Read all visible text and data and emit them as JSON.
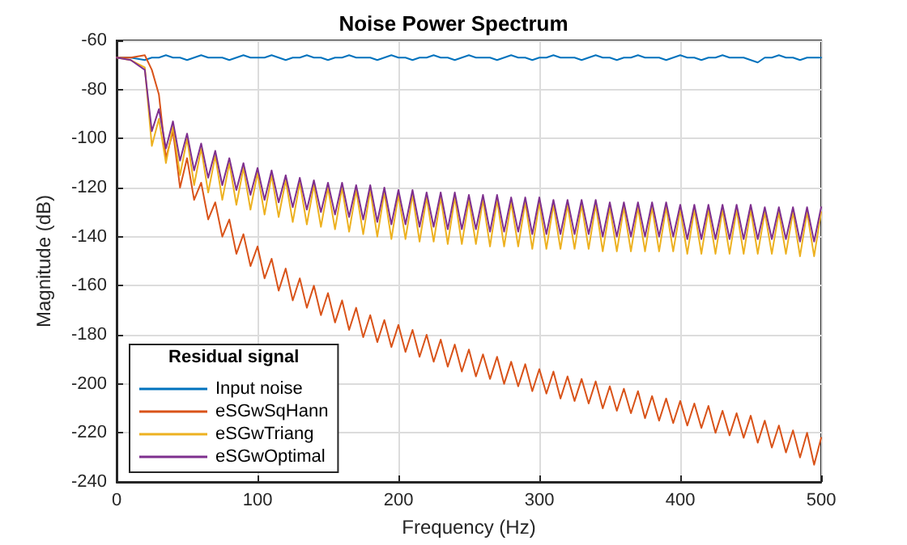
{
  "chart_data": {
    "type": "line",
    "title": "Noise Power Spectrum",
    "xlabel": "Frequency (Hz)",
    "ylabel": "Magnitude (dB)",
    "legend_title": "Residual signal",
    "x": [
      0,
      10,
      20,
      25,
      30,
      35,
      40,
      45,
      50,
      55,
      60,
      65,
      70,
      75,
      80,
      85,
      90,
      95,
      100,
      105,
      110,
      115,
      120,
      125,
      130,
      135,
      140,
      145,
      150,
      155,
      160,
      165,
      170,
      175,
      180,
      185,
      190,
      195,
      200,
      205,
      210,
      215,
      220,
      225,
      230,
      235,
      240,
      245,
      250,
      255,
      260,
      265,
      270,
      275,
      280,
      285,
      290,
      295,
      300,
      305,
      310,
      315,
      320,
      325,
      330,
      335,
      340,
      345,
      350,
      355,
      360,
      365,
      370,
      375,
      380,
      385,
      390,
      395,
      400,
      405,
      410,
      415,
      420,
      425,
      430,
      435,
      440,
      445,
      450,
      455,
      460,
      465,
      470,
      475,
      480,
      485,
      490,
      495,
      500
    ],
    "series": [
      {
        "name": "Input noise",
        "color": "#0072bd",
        "values": [
          -67,
          -67,
          -68,
          -67,
          -67,
          -66,
          -67,
          -67,
          -68,
          -67,
          -66,
          -67,
          -67,
          -67,
          -68,
          -67,
          -66,
          -67,
          -67,
          -67,
          -66,
          -67,
          -68,
          -67,
          -67,
          -66,
          -67,
          -67,
          -68,
          -67,
          -67,
          -66,
          -67,
          -67,
          -67,
          -68,
          -67,
          -66,
          -67,
          -67,
          -68,
          -67,
          -67,
          -66,
          -67,
          -67,
          -68,
          -67,
          -66,
          -67,
          -67,
          -67,
          -68,
          -67,
          -66,
          -67,
          -67,
          -68,
          -67,
          -67,
          -66,
          -67,
          -67,
          -67,
          -68,
          -67,
          -66,
          -67,
          -67,
          -68,
          -67,
          -67,
          -66,
          -67,
          -67,
          -67,
          -68,
          -67,
          -66,
          -67,
          -67,
          -68,
          -67,
          -67,
          -66,
          -67,
          -67,
          -67,
          -68,
          -69,
          -67,
          -67,
          -66,
          -67,
          -67,
          -68,
          -67,
          -67,
          -67
        ]
      },
      {
        "name": "eSGwSqHann",
        "color": "#d95319",
        "values": [
          -67,
          -67,
          -66,
          -72,
          -82,
          -108,
          -97,
          -120,
          -108,
          -125,
          -118,
          -133,
          -126,
          -140,
          -133,
          -147,
          -139,
          -152,
          -144,
          -157,
          -149,
          -162,
          -153,
          -166,
          -157,
          -169,
          -160,
          -172,
          -163,
          -175,
          -166,
          -178,
          -169,
          -181,
          -172,
          -183,
          -174,
          -185,
          -176,
          -187,
          -178,
          -189,
          -180,
          -191,
          -182,
          -193,
          -184,
          -195,
          -186,
          -197,
          -188,
          -198,
          -189,
          -200,
          -191,
          -201,
          -192,
          -203,
          -194,
          -204,
          -195,
          -206,
          -197,
          -207,
          -198,
          -208,
          -199,
          -210,
          -201,
          -211,
          -202,
          -212,
          -203,
          -214,
          -205,
          -215,
          -206,
          -216,
          -207,
          -217,
          -208,
          -218,
          -209,
          -220,
          -211,
          -221,
          -212,
          -222,
          -213,
          -224,
          -215,
          -226,
          -217,
          -228,
          -219,
          -230,
          -220,
          -233,
          -222
        ]
      },
      {
        "name": "eSGwTriang",
        "color": "#edb120",
        "values": [
          -67,
          -68,
          -71,
          -103,
          -92,
          -110,
          -95,
          -115,
          -100,
          -119,
          -104,
          -122,
          -107,
          -125,
          -110,
          -127,
          -112,
          -129,
          -114,
          -131,
          -115,
          -132,
          -117,
          -134,
          -118,
          -135,
          -119,
          -136,
          -120,
          -137,
          -120,
          -138,
          -121,
          -139,
          -121,
          -140,
          -122,
          -141,
          -123,
          -141,
          -123,
          -142,
          -124,
          -142,
          -124,
          -143,
          -124,
          -143,
          -125,
          -143,
          -125,
          -144,
          -125,
          -144,
          -126,
          -144,
          -126,
          -145,
          -126,
          -145,
          -127,
          -145,
          -127,
          -145,
          -127,
          -145,
          -127,
          -146,
          -128,
          -146,
          -128,
          -146,
          -128,
          -146,
          -128,
          -146,
          -128,
          -146,
          -129,
          -147,
          -129,
          -147,
          -129,
          -147,
          -129,
          -147,
          -129,
          -147,
          -129,
          -147,
          -130,
          -147,
          -130,
          -147,
          -130,
          -148,
          -130,
          -148,
          -130
        ]
      },
      {
        "name": "eSGwOptimal",
        "color": "#7e2f8e",
        "values": [
          -67,
          -68,
          -72,
          -97,
          -88,
          -104,
          -93,
          -109,
          -98,
          -113,
          -102,
          -116,
          -105,
          -119,
          -108,
          -121,
          -110,
          -123,
          -112,
          -125,
          -113,
          -126,
          -115,
          -128,
          -116,
          -129,
          -117,
          -130,
          -118,
          -131,
          -118,
          -132,
          -119,
          -133,
          -119,
          -134,
          -120,
          -135,
          -121,
          -135,
          -121,
          -136,
          -122,
          -136,
          -122,
          -137,
          -122,
          -137,
          -123,
          -137,
          -123,
          -138,
          -123,
          -138,
          -124,
          -138,
          -124,
          -139,
          -124,
          -139,
          -125,
          -139,
          -125,
          -139,
          -125,
          -139,
          -125,
          -140,
          -126,
          -140,
          -126,
          -140,
          -126,
          -140,
          -126,
          -140,
          -126,
          -140,
          -127,
          -141,
          -127,
          -141,
          -127,
          -141,
          -127,
          -141,
          -127,
          -141,
          -127,
          -141,
          -128,
          -141,
          -128,
          -141,
          -128,
          -142,
          -128,
          -142,
          -128
        ]
      }
    ],
    "xlim": [
      0,
      500
    ],
    "xticks": [
      0,
      100,
      200,
      300,
      400,
      500
    ],
    "ylim": [
      -240,
      -60
    ],
    "yticks": [
      -240,
      -220,
      -200,
      -180,
      -160,
      -140,
      -120,
      -100,
      -80,
      -60
    ],
    "grid": true,
    "legend": "bottom left",
    "marker": "none",
    "line_style": "solid"
  }
}
